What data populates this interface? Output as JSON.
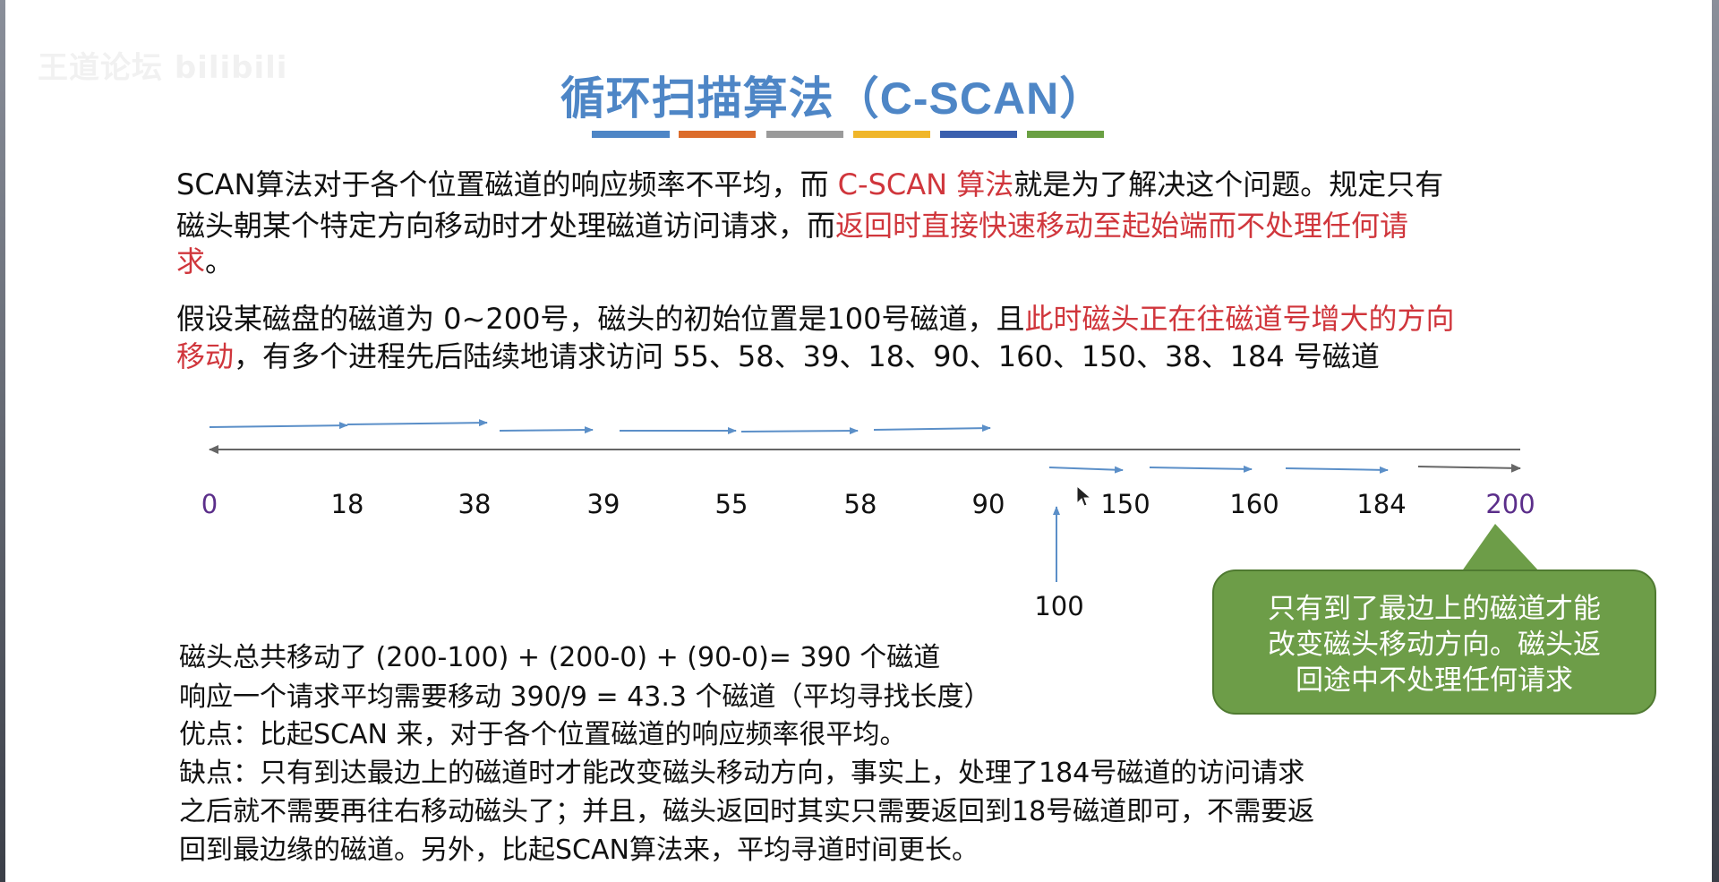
{
  "watermark": "王道论坛 bilibili",
  "title": {
    "text": "循环扫描算法（",
    "latin": "C-SCAN",
    "close": "）",
    "stripe_colors": [
      "#4e86c6",
      "#dc6c2b",
      "#9a9a9a",
      "#f0b62a",
      "#3a5fae",
      "#6aa043"
    ]
  },
  "intro": {
    "line1_a": "SCAN算法对于各个位置磁道的响应频率不平均，而 ",
    "line1_red": "C-SCAN 算法",
    "line1_b": "就是为了解决这个问题。规定只有",
    "line2_a": "磁头朝某个特定方向移动时才处理磁道访问请求，而",
    "line2_red": "返回时直接快速移动至起始端而不处理任何请",
    "line3_red": "求",
    "line3_b": "。"
  },
  "assumption": {
    "line1_a": "假设某磁盘的磁道为 0~200号，磁头的初始位置是100号磁道，且",
    "line1_red": "此时磁头正在往磁道号增大的方向",
    "line2_red": "移动",
    "line2_b": "，有多个进程先后陆续地请求访问 55、58、39、18、90、160、150、38、184 号磁道"
  },
  "axis": {
    "labels": [
      "0",
      "18",
      "38",
      "39",
      "55",
      "58",
      "90",
      "150",
      "160",
      "184",
      "200"
    ],
    "start": "100",
    "arrow_color": "#5b8fc8",
    "axis_color": "#666666"
  },
  "callout": {
    "line1": "只有到了最边上的磁道才能",
    "line2": "改变磁头移动方向。磁头返",
    "line3": "回途中不处理任何请求"
  },
  "summary": {
    "line1": "磁头总共移动了  (200-100) + (200-0) + (90-0)= 390 个磁道",
    "line2": "响应一个请求平均需要移动 390/9 = 43.3 个磁道（平均寻找长度）",
    "line3": "优点：比起SCAN 来，对于各个位置磁道的响应频率很平均。",
    "line4": "缺点：只有到达最边上的磁道时才能改变磁头移动方向，事实上，处理了184号磁道的访问请求",
    "line5": "之后就不需要再往右移动磁头了；并且，磁头返回时其实只需要返回到18号磁道即可，不需要返",
    "line6": "回到最边缘的磁道。另外，比起SCAN算法来，平均寻道时间更长。"
  }
}
